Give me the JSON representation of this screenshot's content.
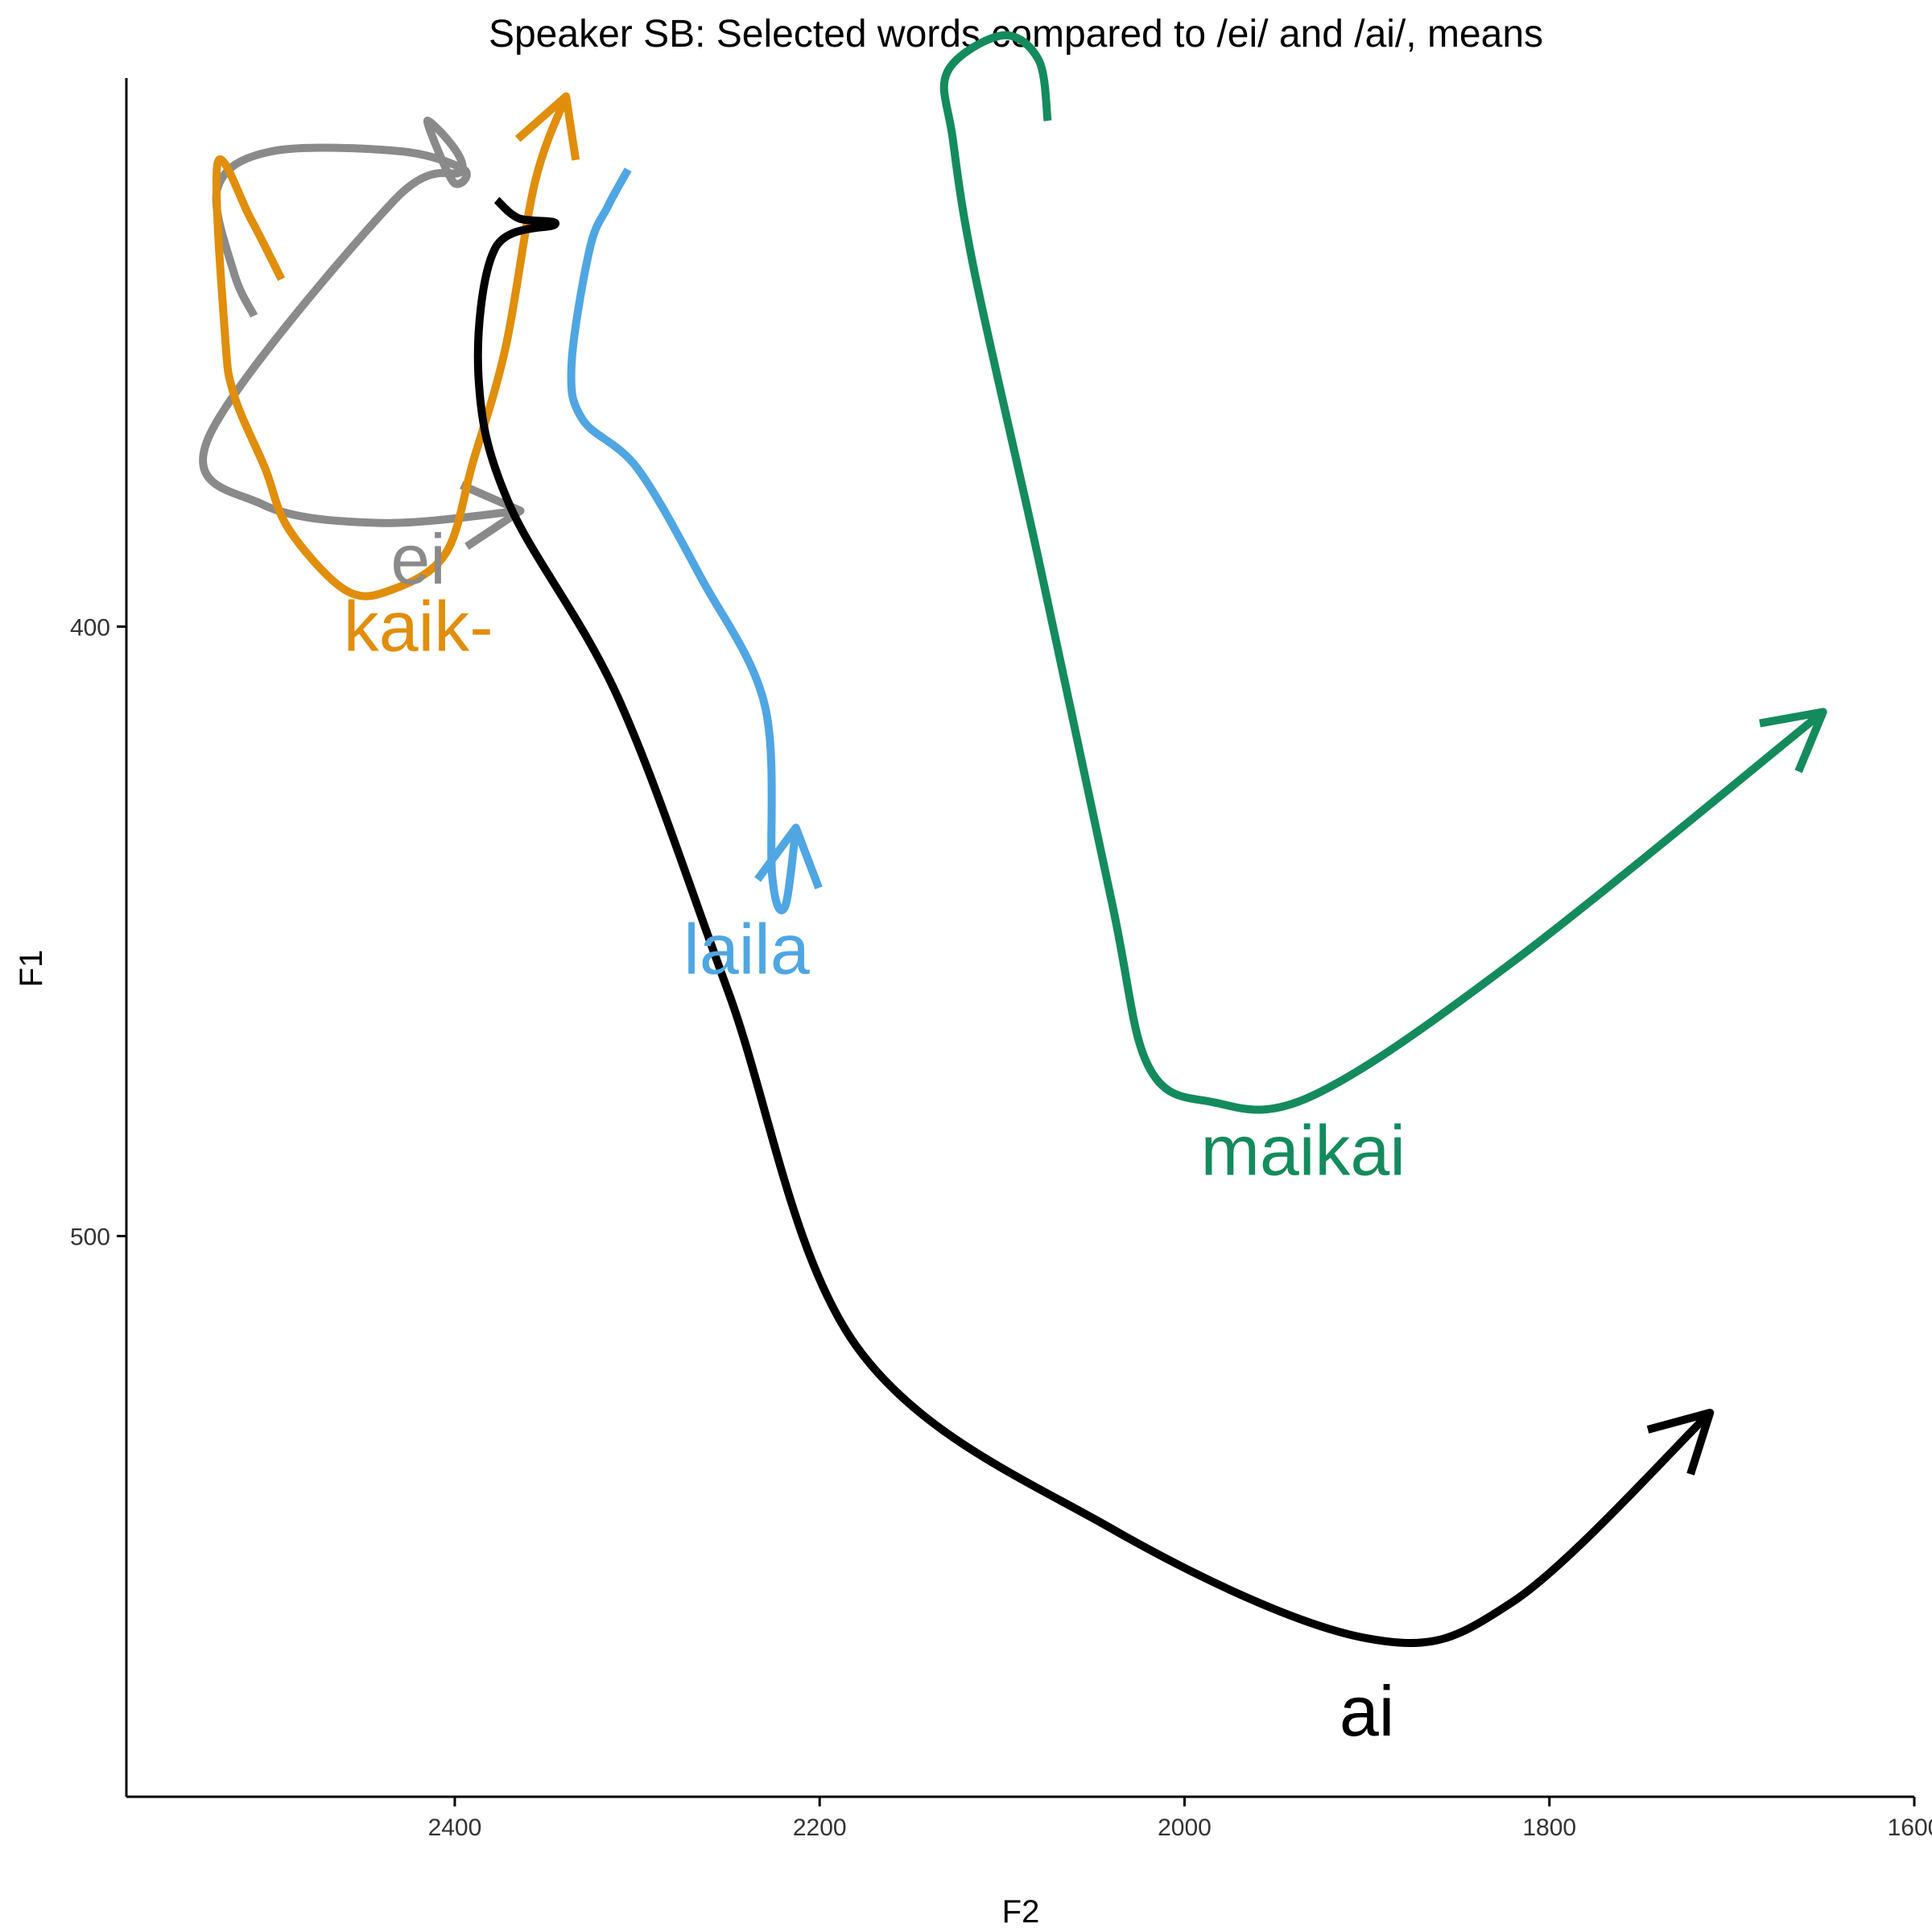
{
  "chart_data": {
    "type": "line",
    "title": "Speaker SB: Selected words compared to /ei/ and /ai/, means",
    "xlabel": "F2",
    "ylabel": "F1",
    "x_reversed": true,
    "y_reversed": true,
    "xlim": [
      2580,
      1600
    ],
    "ylim": [
      310,
      592
    ],
    "x_ticks": [
      2400,
      2200,
      2000,
      1800,
      1600
    ],
    "y_ticks": [
      400,
      500
    ],
    "grid": false,
    "series": [
      {
        "name": "ei",
        "color": "#8a8a8a",
        "label_at": [
          2420,
          389
        ],
        "points": [
          [
            2510,
            349
          ],
          [
            2521,
            342
          ],
          [
            2530,
            328
          ],
          [
            2500,
            322
          ],
          [
            2430,
            322
          ],
          [
            2395,
            325
          ],
          [
            2401,
            327
          ],
          [
            2415,
            317
          ],
          [
            2396,
            325
          ],
          [
            2433,
            330
          ],
          [
            2535,
            369
          ],
          [
            2505,
            380
          ],
          [
            2440,
            383
          ],
          [
            2364,
            381
          ]
        ]
      },
      {
        "name": "kaik-",
        "color": "#e08e0b",
        "label_at": [
          2420,
          400
        ],
        "points": [
          [
            2495,
            343
          ],
          [
            2512,
            333
          ],
          [
            2530,
            324
          ],
          [
            2526,
            352
          ],
          [
            2521,
            362
          ],
          [
            2504,
            374
          ],
          [
            2491,
            384
          ],
          [
            2460,
            394
          ],
          [
            2435,
            394
          ],
          [
            2405,
            388
          ],
          [
            2390,
            373
          ],
          [
            2372,
            354
          ],
          [
            2356,
            327
          ],
          [
            2339,
            313
          ]
        ]
      },
      {
        "name": "laila",
        "color": "#4fa6e3",
        "label_at": [
          2240,
          453
        ],
        "points": [
          [
            2305,
            325
          ],
          [
            2316,
            331
          ],
          [
            2326,
            338
          ],
          [
            2336,
            357
          ],
          [
            2330,
            366
          ],
          [
            2300,
            374
          ],
          [
            2265,
            392
          ],
          [
            2230,
            413
          ],
          [
            2226,
            441
          ],
          [
            2219,
            446
          ],
          [
            2213,
            433
          ]
        ]
      },
      {
        "name": "maikai",
        "color": "#148b5d",
        "label_at": [
          1935,
          486
        ],
        "points": [
          [
            2075,
            317
          ],
          [
            2080,
            307
          ],
          [
            2100,
            303
          ],
          [
            2130,
            309
          ],
          [
            2127,
            320
          ],
          [
            2115,
            342
          ],
          [
            2080,
            389
          ],
          [
            2040,
            445
          ],
          [
            2020,
            472
          ],
          [
            1985,
            478
          ],
          [
            1930,
            477
          ],
          [
            1820,
            455
          ],
          [
            1650,
            414
          ]
        ]
      },
      {
        "name": "ai",
        "color": "#000000",
        "label_at": [
          1900,
          578
        ],
        "points": [
          [
            2377,
            330
          ],
          [
            2365,
            333
          ],
          [
            2345,
            334
          ],
          [
            2378,
            338
          ],
          [
            2387,
            359
          ],
          [
            2370,
            380
          ],
          [
            2310,
            412
          ],
          [
            2250,
            460
          ],
          [
            2180,
            518
          ],
          [
            2040,
            548
          ],
          [
            1900,
            566
          ],
          [
            1820,
            560
          ],
          [
            1712,
            529
          ]
        ]
      }
    ]
  }
}
